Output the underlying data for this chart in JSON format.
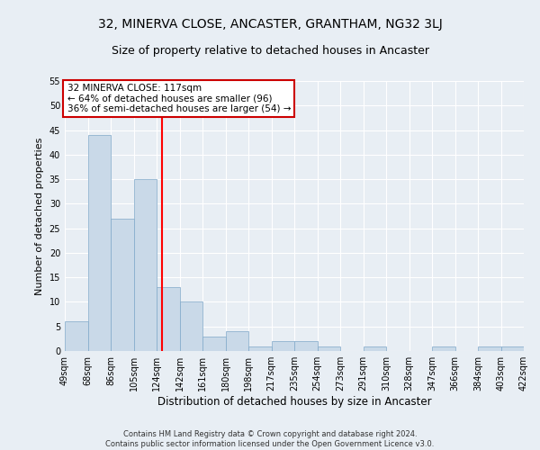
{
  "title": "32, MINERVA CLOSE, ANCASTER, GRANTHAM, NG32 3LJ",
  "subtitle": "Size of property relative to detached houses in Ancaster",
  "xlabel": "Distribution of detached houses by size in Ancaster",
  "ylabel": "Number of detached properties",
  "bar_values": [
    6,
    44,
    27,
    35,
    13,
    10,
    3,
    4,
    1,
    2,
    2,
    1,
    0,
    1,
    0,
    0,
    1,
    0,
    1,
    1
  ],
  "bin_labels": [
    "49sqm",
    "68sqm",
    "86sqm",
    "105sqm",
    "124sqm",
    "142sqm",
    "161sqm",
    "180sqm",
    "198sqm",
    "217sqm",
    "235sqm",
    "254sqm",
    "273sqm",
    "291sqm",
    "310sqm",
    "328sqm",
    "347sqm",
    "366sqm",
    "384sqm",
    "403sqm",
    "422sqm"
  ],
  "bar_color": "#c9d9e8",
  "bar_edge_color": "#7fa8c9",
  "background_color": "#e8eef4",
  "grid_color": "#ffffff",
  "red_line_x": 3.75,
  "annotation_text": "32 MINERVA CLOSE: 117sqm\n← 64% of detached houses are smaller (96)\n36% of semi-detached houses are larger (54) →",
  "annotation_box_color": "#ffffff",
  "annotation_box_edge": "#cc0000",
  "ylim": [
    0,
    55
  ],
  "yticks": [
    0,
    5,
    10,
    15,
    20,
    25,
    30,
    35,
    40,
    45,
    50,
    55
  ],
  "footer_text": "Contains HM Land Registry data © Crown copyright and database right 2024.\nContains public sector information licensed under the Open Government Licence v3.0.",
  "title_fontsize": 10,
  "subtitle_fontsize": 9,
  "tick_fontsize": 7,
  "ylabel_fontsize": 8,
  "xlabel_fontsize": 8.5,
  "annotation_fontsize": 7.5,
  "footer_fontsize": 6
}
